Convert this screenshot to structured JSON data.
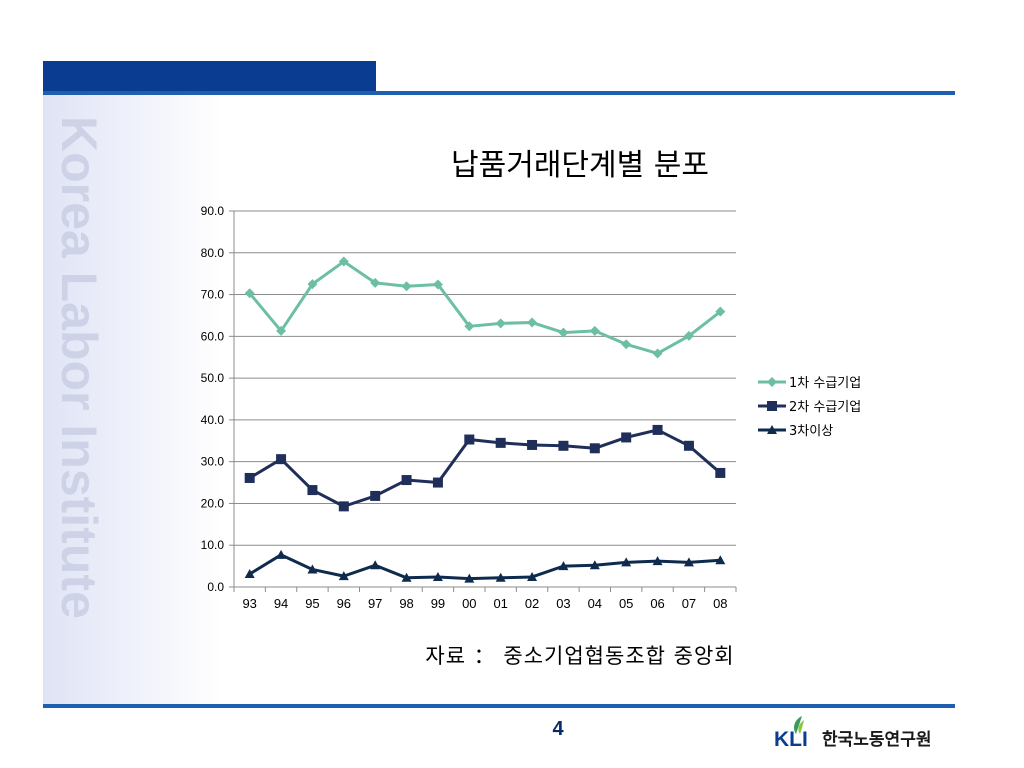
{
  "slide": {
    "watermark": "Korea Labor Institute",
    "page_number": "4",
    "logo_text": "한국노동연구원",
    "logo_abbr": "KLI",
    "source": "자료 ： 중소기업협동조합 중앙회"
  },
  "colors": {
    "header_block": "#0a3d91",
    "header_line": "#1f5fb0",
    "series1": "#6cbfa4",
    "series2": "#1f2f5a",
    "series3": "#0e2b4d"
  },
  "chart_data": {
    "type": "line",
    "title": "납품거래단계별 분포",
    "categories": [
      "93",
      "94",
      "95",
      "96",
      "97",
      "98",
      "99",
      "00",
      "01",
      "02",
      "03",
      "04",
      "05",
      "06",
      "07",
      "08"
    ],
    "ylim": [
      0,
      90
    ],
    "yticks": [
      "0.0",
      "10.0",
      "20.0",
      "30.0",
      "40.0",
      "50.0",
      "60.0",
      "70.0",
      "80.0",
      "90.0"
    ],
    "grid": true,
    "legend_position": "right",
    "series": [
      {
        "name": "1차 수급기업",
        "marker": "diamond",
        "values": [
          70.3,
          61.3,
          72.5,
          77.9,
          72.8,
          72.0,
          72.4,
          62.4,
          63.1,
          63.3,
          60.9,
          61.3,
          58.1,
          55.9,
          60.1,
          65.9
        ]
      },
      {
        "name": "2차 수급기업",
        "marker": "square",
        "values": [
          26.1,
          30.6,
          23.2,
          19.3,
          21.8,
          25.6,
          25.0,
          35.3,
          34.5,
          34.0,
          33.8,
          33.2,
          35.8,
          37.6,
          33.8,
          27.3
        ]
      },
      {
        "name": "3차이상",
        "marker": "triangle",
        "values": [
          3.1,
          7.7,
          4.2,
          2.6,
          5.2,
          2.2,
          2.4,
          2.0,
          2.2,
          2.4,
          5.0,
          5.2,
          5.9,
          6.2,
          5.9,
          6.4
        ]
      }
    ]
  }
}
